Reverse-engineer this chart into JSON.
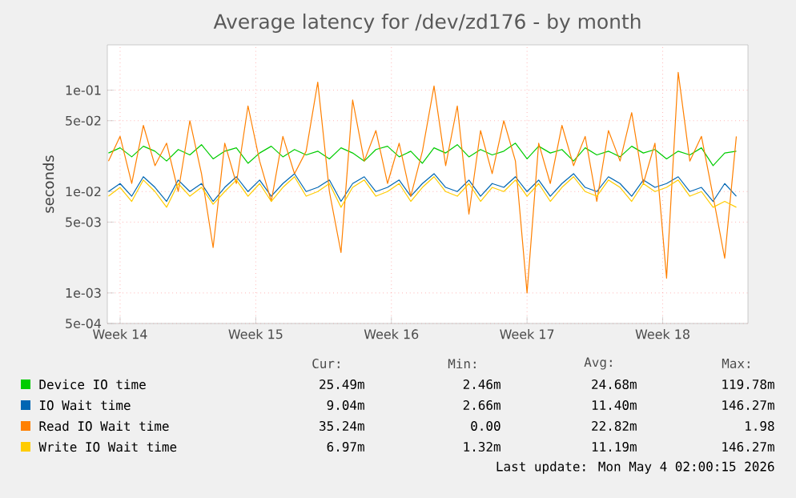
{
  "chart_data": {
    "type": "line",
    "title": "Average latency for /dev/zd176 - by month",
    "ylabel": "seconds",
    "log": "y",
    "grid": true,
    "legend": "bottom",
    "marker": "none",
    "line_style": "solid",
    "xlim": [
      "2026-03-29T08:10",
      "2026-05-01T09:36"
    ],
    "xticks": [
      {
        "value": "2026-03-30",
        "label": "Week 14"
      },
      {
        "value": "2026-04-06",
        "label": "Week 15"
      },
      {
        "value": "2026-04-13",
        "label": "Week 16"
      },
      {
        "value": "2026-04-20",
        "label": "Week 17"
      },
      {
        "value": "2026-04-27",
        "label": "Week 18"
      }
    ],
    "ylim": [
      0.0005,
      0.28
    ],
    "yticks": [
      {
        "value": 0.0005,
        "label": "5e-04"
      },
      {
        "value": 0.001,
        "label": "1e-03"
      },
      {
        "value": 0.005,
        "label": "5e-03"
      },
      {
        "value": 0.01,
        "label": "1e-02"
      },
      {
        "value": 0.05,
        "label": "5e-02"
      },
      {
        "value": 0.1,
        "label": "1e-01"
      }
    ],
    "x": [
      "2026-03-29T09:36",
      "2026-03-30T00:00",
      "2026-03-30T14:24",
      "2026-03-31T04:48",
      "2026-03-31T19:12",
      "2026-04-01T09:36",
      "2026-04-02T00:00",
      "2026-04-02T14:24",
      "2026-04-03T04:48",
      "2026-04-03T19:12",
      "2026-04-04T09:36",
      "2026-04-05T00:00",
      "2026-04-05T14:24",
      "2026-04-06T04:48",
      "2026-04-06T19:12",
      "2026-04-07T09:36",
      "2026-04-08T00:00",
      "2026-04-08T14:24",
      "2026-04-09T04:48",
      "2026-04-09T19:12",
      "2026-04-10T09:36",
      "2026-04-11T00:00",
      "2026-04-11T14:24",
      "2026-04-12T04:48",
      "2026-04-12T19:12",
      "2026-04-13T09:36",
      "2026-04-14T00:00",
      "2026-04-14T14:24",
      "2026-04-15T04:48",
      "2026-04-15T19:12",
      "2026-04-16T09:36",
      "2026-04-17T00:00",
      "2026-04-17T14:24",
      "2026-04-18T04:48",
      "2026-04-18T19:12",
      "2026-04-19T09:36",
      "2026-04-20T00:00",
      "2026-04-20T14:24",
      "2026-04-21T04:48",
      "2026-04-21T19:12",
      "2026-04-22T09:36",
      "2026-04-23T00:00",
      "2026-04-23T14:24",
      "2026-04-24T04:48",
      "2026-04-24T19:12",
      "2026-04-25T09:36",
      "2026-04-26T00:00",
      "2026-04-26T14:24",
      "2026-04-27T04:48",
      "2026-04-27T19:12",
      "2026-04-28T09:36",
      "2026-04-29T00:00",
      "2026-04-29T14:24",
      "2026-04-30T04:48",
      "2026-04-30T19:12"
    ],
    "series": [
      {
        "name": "Device IO time",
        "color": "#00cc00",
        "values": [
          0.024,
          0.027,
          0.022,
          0.028,
          0.025,
          0.02,
          0.026,
          0.023,
          0.029,
          0.021,
          0.025,
          0.027,
          0.019,
          0.024,
          0.028,
          0.022,
          0.026,
          0.023,
          0.025,
          0.021,
          0.027,
          0.024,
          0.02,
          0.026,
          0.028,
          0.022,
          0.025,
          0.019,
          0.027,
          0.024,
          0.029,
          0.022,
          0.026,
          0.023,
          0.025,
          0.03,
          0.021,
          0.028,
          0.024,
          0.026,
          0.02,
          0.027,
          0.023,
          0.025,
          0.022,
          0.028,
          0.024,
          0.026,
          0.021,
          0.025,
          0.023,
          0.027,
          0.018,
          0.024,
          0.025
        ]
      },
      {
        "name": "IO Wait time",
        "color": "#0066b3",
        "values": [
          0.01,
          0.012,
          0.009,
          0.014,
          0.011,
          0.008,
          0.013,
          0.01,
          0.012,
          0.008,
          0.011,
          0.014,
          0.01,
          0.013,
          0.009,
          0.012,
          0.015,
          0.01,
          0.011,
          0.013,
          0.008,
          0.012,
          0.014,
          0.01,
          0.011,
          0.013,
          0.009,
          0.012,
          0.015,
          0.011,
          0.01,
          0.013,
          0.009,
          0.012,
          0.011,
          0.014,
          0.01,
          0.013,
          0.009,
          0.012,
          0.015,
          0.011,
          0.01,
          0.014,
          0.012,
          0.009,
          0.013,
          0.011,
          0.012,
          0.014,
          0.01,
          0.011,
          0.008,
          0.012,
          0.009
        ]
      },
      {
        "name": "Read IO Wait time",
        "color": "#ff8000",
        "values": [
          0.02,
          0.035,
          0.012,
          0.045,
          0.018,
          0.03,
          0.01,
          0.05,
          0.015,
          0.0028,
          0.03,
          0.012,
          0.07,
          0.02,
          0.008,
          0.035,
          0.015,
          0.025,
          0.12,
          0.01,
          0.0025,
          0.08,
          0.02,
          0.04,
          0.012,
          0.03,
          0.009,
          0.025,
          0.11,
          0.018,
          0.07,
          0.006,
          0.04,
          0.015,
          0.05,
          0.02,
          0.001,
          0.03,
          0.012,
          0.045,
          0.018,
          0.035,
          0.008,
          0.04,
          0.02,
          0.06,
          0.012,
          0.03,
          0.0014,
          0.15,
          0.02,
          0.035,
          0.009,
          0.0022,
          0.035
        ]
      },
      {
        "name": "Write IO Wait time",
        "color": "#ffcc00",
        "values": [
          0.009,
          0.011,
          0.008,
          0.013,
          0.01,
          0.007,
          0.012,
          0.009,
          0.011,
          0.0075,
          0.01,
          0.013,
          0.009,
          0.012,
          0.008,
          0.011,
          0.014,
          0.009,
          0.01,
          0.012,
          0.007,
          0.011,
          0.013,
          0.009,
          0.01,
          0.012,
          0.008,
          0.011,
          0.014,
          0.01,
          0.009,
          0.012,
          0.008,
          0.011,
          0.01,
          0.013,
          0.009,
          0.012,
          0.008,
          0.011,
          0.014,
          0.01,
          0.009,
          0.013,
          0.011,
          0.008,
          0.012,
          0.01,
          0.011,
          0.013,
          0.009,
          0.01,
          0.007,
          0.008,
          0.007
        ]
      }
    ],
    "annotations": [
      "Cur:",
      "Min:",
      "Avg:",
      "Max:",
      "25.49m",
      "2.46m",
      "24.68m",
      "119.78m",
      "9.04m",
      "2.66m",
      "11.40m",
      "146.27m",
      "35.24m",
      "0.00",
      "22.82m",
      "1.98",
      "6.97m",
      "1.32m",
      "11.19m",
      "146.27m",
      "Last update: Mon May  4 02:00:15 2026"
    ]
  }
}
